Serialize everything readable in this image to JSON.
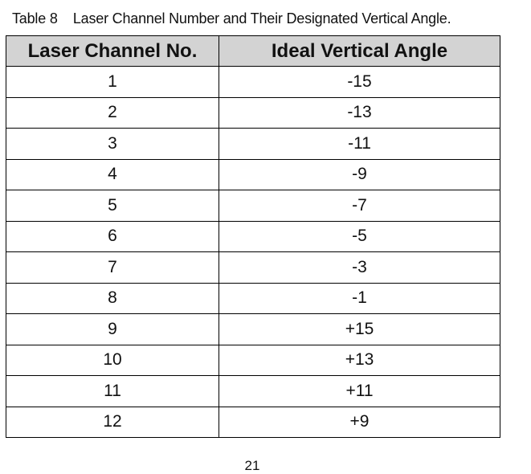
{
  "caption": "Table 8    Laser Channel Number and Their Designated Vertical Angle.",
  "table": {
    "headers": [
      "Laser Channel No.",
      "Ideal Vertical Angle"
    ],
    "rows": [
      [
        "1",
        "-15"
      ],
      [
        "2",
        "-13"
      ],
      [
        "3",
        "-11"
      ],
      [
        "4",
        "-9"
      ],
      [
        "5",
        "-7"
      ],
      [
        "6",
        "-5"
      ],
      [
        "7",
        "-3"
      ],
      [
        "8",
        "-1"
      ],
      [
        "9",
        "+15"
      ],
      [
        "10",
        "+13"
      ],
      [
        "11",
        "+11"
      ],
      [
        "12",
        "+9"
      ]
    ]
  },
  "page_number": "21"
}
